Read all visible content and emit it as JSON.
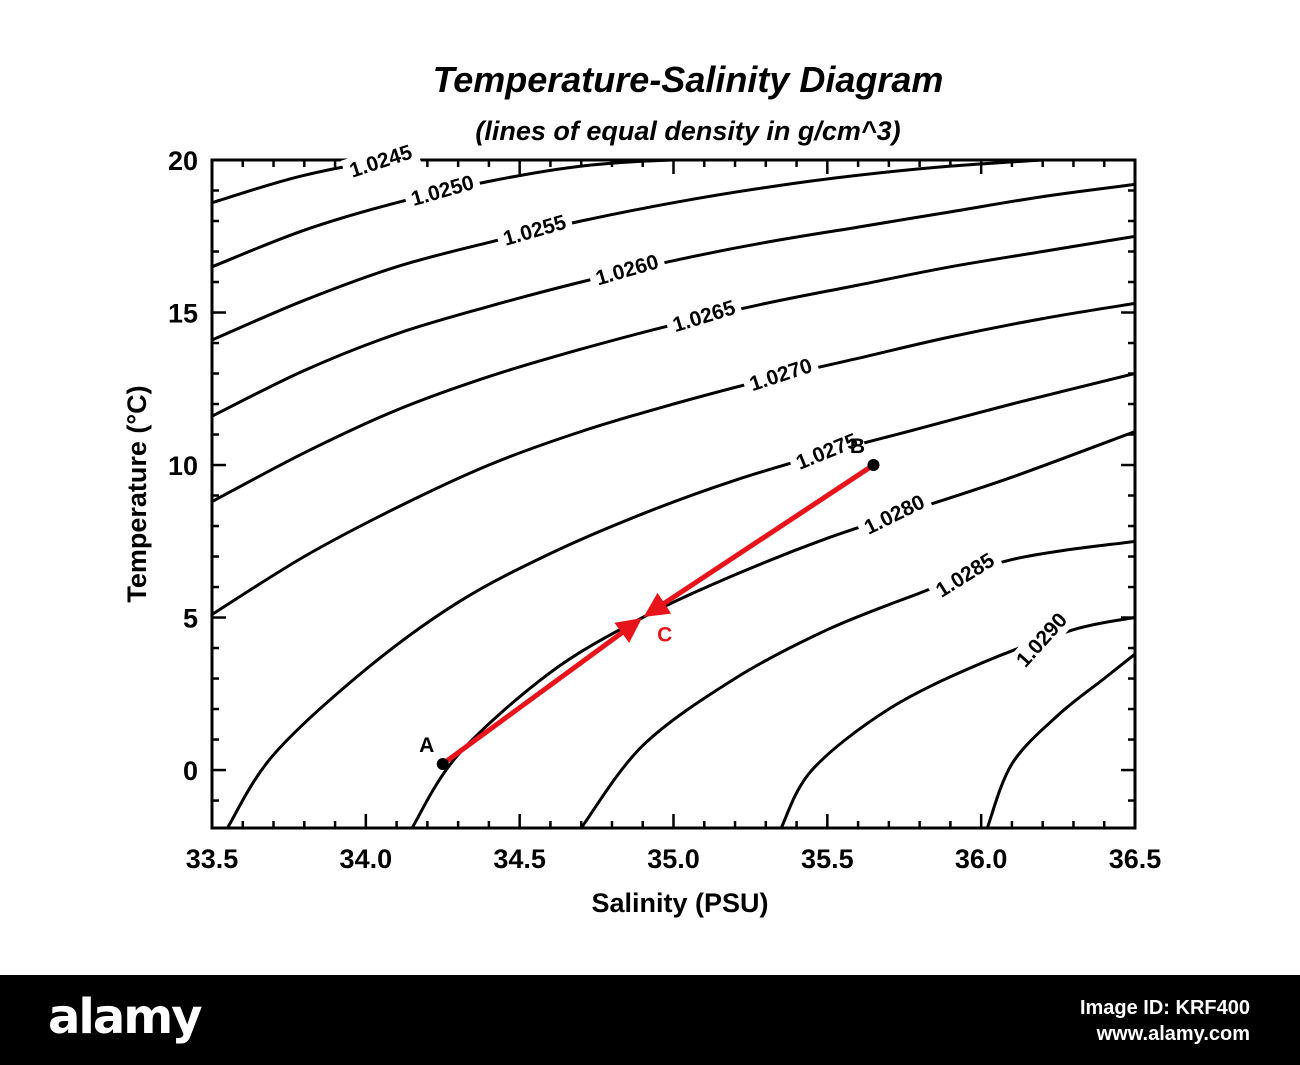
{
  "chart_data": {
    "type": "line",
    "title": "Temperature-Salinity Diagram",
    "subtitle": "(lines of equal density in g/cm^3)",
    "xlabel": "Salinity (PSU)",
    "ylabel": "Temperature (°C)",
    "xlim": [
      33.5,
      36.5
    ],
    "ylim": [
      -1.9,
      20
    ],
    "xticks": [
      "33.5",
      "34.0",
      "34.5",
      "35.0",
      "35.5",
      "36.0",
      "36.5"
    ],
    "yticks": [
      "0",
      "5",
      "10",
      "15",
      "20"
    ],
    "grid": false,
    "series": [
      {
        "name": "1.0245",
        "x": [
          33.5,
          33.8,
          34.1,
          34.45
        ],
        "y": [
          18.6,
          19.5,
          20.0,
          20.0
        ]
      },
      {
        "name": "1.0250",
        "x": [
          33.5,
          33.8,
          34.1,
          34.4,
          34.7,
          35.0,
          35.35
        ],
        "y": [
          16.5,
          17.7,
          18.6,
          19.3,
          19.8,
          20.0,
          20.0
        ]
      },
      {
        "name": "1.0255",
        "x": [
          33.5,
          33.8,
          34.1,
          34.4,
          34.7,
          35.0,
          35.3,
          35.6,
          35.9,
          36.2
        ],
        "y": [
          14.1,
          15.4,
          16.5,
          17.3,
          18.0,
          18.6,
          19.1,
          19.5,
          19.8,
          20.0
        ]
      },
      {
        "name": "1.0260",
        "x": [
          33.5,
          33.8,
          34.1,
          34.4,
          34.7,
          35.0,
          35.3,
          35.6,
          35.9,
          36.2,
          36.5
        ],
        "y": [
          11.6,
          13.1,
          14.3,
          15.2,
          16.0,
          16.7,
          17.3,
          17.8,
          18.3,
          18.8,
          19.2
        ]
      },
      {
        "name": "1.0265",
        "x": [
          33.5,
          33.8,
          34.1,
          34.4,
          34.7,
          35.0,
          35.3,
          35.6,
          35.9,
          36.2,
          36.5
        ],
        "y": [
          8.8,
          10.4,
          11.8,
          12.9,
          13.8,
          14.6,
          15.3,
          15.9,
          16.5,
          17.0,
          17.5
        ]
      },
      {
        "name": "1.0270",
        "x": [
          33.5,
          33.8,
          34.1,
          34.4,
          34.7,
          35.0,
          35.3,
          35.6,
          35.9,
          36.2,
          36.5
        ],
        "y": [
          5.1,
          7.0,
          8.6,
          10.0,
          11.1,
          12.0,
          12.8,
          13.5,
          14.2,
          14.8,
          15.3
        ]
      },
      {
        "name": "1.0275",
        "x": [
          33.55,
          33.7,
          34.0,
          34.3,
          34.6,
          34.9,
          35.2,
          35.5,
          35.8,
          36.1,
          36.5
        ],
        "y": [
          -1.9,
          0.5,
          3.3,
          5.5,
          7.1,
          8.4,
          9.5,
          10.4,
          11.2,
          12.0,
          13.0
        ]
      },
      {
        "name": "1.0280",
        "x": [
          34.15,
          34.3,
          34.6,
          34.9,
          35.2,
          35.5,
          35.8,
          36.1,
          36.5
        ],
        "y": [
          -1.9,
          0.5,
          3.2,
          5.0,
          6.4,
          7.6,
          8.6,
          9.6,
          11.1
        ]
      },
      {
        "name": "1.0285",
        "x": [
          34.7,
          34.9,
          35.2,
          35.5,
          35.8,
          36.1,
          36.5
        ],
        "y": [
          -1.9,
          0.8,
          3.0,
          4.6,
          5.8,
          6.9,
          7.5
        ]
      },
      {
        "name": "1.0290",
        "x": [
          35.35,
          35.45,
          35.7,
          36.0,
          36.3,
          36.5
        ],
        "y": [
          -1.9,
          0.0,
          2.0,
          3.5,
          4.6,
          5.0
        ]
      },
      {
        "name": "",
        "x": [
          36.02,
          36.1,
          36.25,
          36.4,
          36.5
        ],
        "y": [
          -1.9,
          0.2,
          1.8,
          3.0,
          3.8
        ]
      }
    ],
    "points": [
      {
        "label": "A",
        "x": 34.25,
        "y": 0.2
      },
      {
        "label": "B",
        "x": 35.65,
        "y": 10.0
      },
      {
        "label": "C",
        "x": 34.9,
        "y": 5.0
      }
    ],
    "arrows": [
      {
        "from": "A",
        "to": "C",
        "color": "#e8141b"
      },
      {
        "from": "B",
        "to": "C",
        "color": "#e8141b"
      }
    ],
    "colors": {
      "contour": "#000000",
      "arrow": "#e8141b",
      "point": "#000000",
      "label_c": "#e8141b"
    }
  },
  "footer": {
    "logo": "alamy",
    "image_id": "Image ID: KRF400",
    "site": "www.alamy.com"
  }
}
